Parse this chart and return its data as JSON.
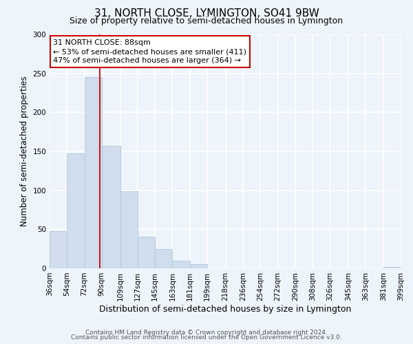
{
  "title": "31, NORTH CLOSE, LYMINGTON, SO41 9BW",
  "subtitle": "Size of property relative to semi-detached houses in Lymington",
  "xlabel": "Distribution of semi-detached houses by size in Lymington",
  "ylabel": "Number of semi-detached properties",
  "bar_edges": [
    36,
    54,
    72,
    90,
    109,
    127,
    145,
    163,
    181,
    199,
    218,
    236,
    254,
    272,
    290,
    308,
    326,
    345,
    363,
    381,
    399
  ],
  "bar_heights": [
    48,
    147,
    245,
    157,
    99,
    41,
    25,
    10,
    5,
    0,
    0,
    0,
    0,
    0,
    0,
    0,
    0,
    0,
    0,
    2
  ],
  "bar_color": "#cfdded",
  "bar_edgecolor": "#b0c8dc",
  "property_line_x": 88,
  "property_line_color": "#cc0000",
  "ylim": [
    0,
    300
  ],
  "yticks": [
    0,
    50,
    100,
    150,
    200,
    250,
    300
  ],
  "xtick_labels": [
    "36sqm",
    "54sqm",
    "72sqm",
    "90sqm",
    "109sqm",
    "127sqm",
    "145sqm",
    "163sqm",
    "181sqm",
    "199sqm",
    "218sqm",
    "236sqm",
    "254sqm",
    "272sqm",
    "290sqm",
    "308sqm",
    "326sqm",
    "345sqm",
    "363sqm",
    "381sqm",
    "399sqm"
  ],
  "annotation_line1": "31 NORTH CLOSE: 88sqm",
  "annotation_line2": "← 53% of semi-detached houses are smaller (411)",
  "annotation_line3": "47% of semi-detached houses are larger (364) →",
  "footer_line1": "Contains HM Land Registry data © Crown copyright and database right 2024.",
  "footer_line2": "Contains public sector information licensed under the Open Government Licence v3.0.",
  "background_color": "#eef4fb",
  "grid_color": "#ffffff",
  "title_fontsize": 11,
  "subtitle_fontsize": 9,
  "tick_fontsize": 7.5,
  "ylabel_fontsize": 8.5,
  "xlabel_fontsize": 9,
  "footer_fontsize": 6.5
}
